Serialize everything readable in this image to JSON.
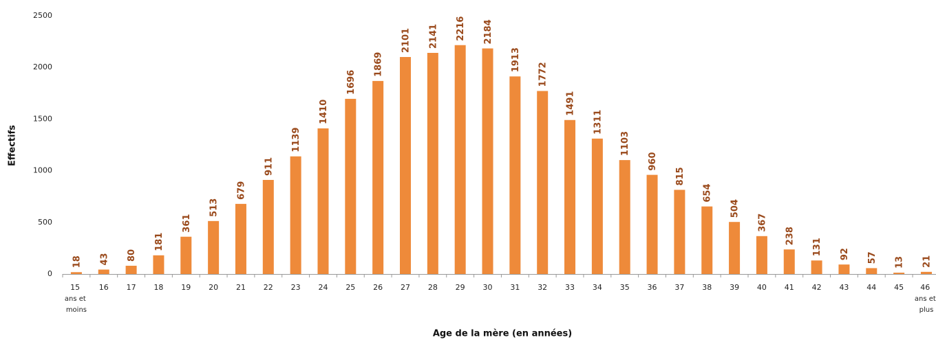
{
  "chart_data": {
    "type": "bar",
    "x_label": "Age de la mère (en années)",
    "y_label": "Effectifs",
    "categories": [
      "15 ans et moins",
      "16",
      "17",
      "18",
      "19",
      "20",
      "21",
      "22",
      "23",
      "24",
      "25",
      "26",
      "27",
      "28",
      "29",
      "30",
      "31",
      "32",
      "33",
      "34",
      "35",
      "36",
      "37",
      "38",
      "39",
      "40",
      "41",
      "42",
      "43",
      "44",
      "45",
      "46 ans et plus"
    ],
    "values": [
      18,
      43,
      80,
      181,
      361,
      513,
      679,
      911,
      1139,
      1410,
      1696,
      1869,
      2101,
      2141,
      2216,
      2184,
      1913,
      1772,
      1491,
      1311,
      1103,
      960,
      815,
      654,
      504,
      367,
      238,
      131,
      92,
      57,
      13,
      21
    ],
    "color": "#ee8a3a",
    "ylim": [
      0,
      2500
    ],
    "yticks": [
      0,
      500,
      1000,
      1500,
      2000,
      2500
    ],
    "grid": false
  }
}
